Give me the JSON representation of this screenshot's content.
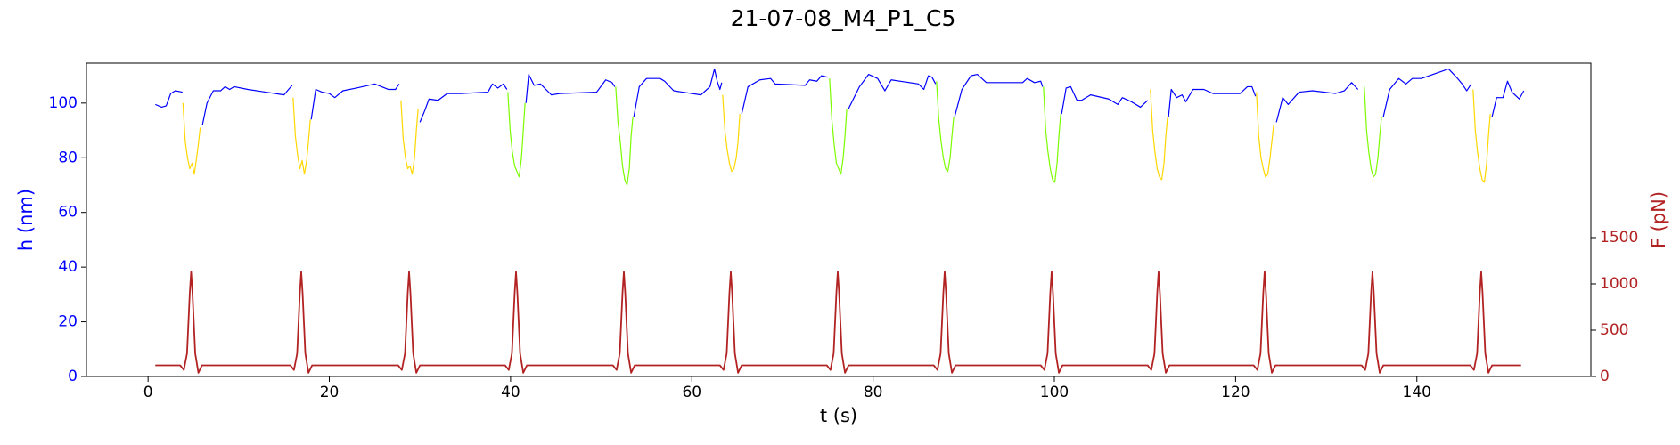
{
  "chart_data": {
    "type": "line",
    "title": "21-07-08_M4_P1_C5",
    "xlabel": "t (s)",
    "ylabel": "h (nm)",
    "y2label": "F (pN)",
    "y_axis_color": "#0000ff",
    "y2_axis_color": "#b22222",
    "xlim": [
      -6.8,
      159.2
    ],
    "ylim": [
      0,
      114.6
    ],
    "y2lim": [
      0,
      3384
    ],
    "xticks": [
      0,
      20,
      40,
      60,
      80,
      100,
      120,
      140
    ],
    "yticks": [
      0,
      20,
      40,
      60,
      80,
      100
    ],
    "y2ticks": [
      0,
      500,
      1000,
      1500
    ],
    "series": [
      {
        "color": "#0000ff",
        "axis": "y",
        "x": [
          0.8,
          1.5,
          2.0,
          2.5,
          3.0,
          3.8,
          4.75,
          6.0,
          6.5,
          7.2,
          8.0,
          8.5,
          9.0,
          9.5,
          11,
          13,
          15,
          15.5,
          15.9,
          16.9,
          18.0,
          18.5,
          19.2,
          20,
          20.6,
          21.5,
          23,
          25,
          26.5,
          27.3,
          27.7,
          28.8,
          30.0,
          30.5,
          31.0,
          32.0,
          33.0,
          34.5,
          37.5,
          38.0,
          38.6,
          39.2,
          39.6,
          40.6,
          41.7,
          42.0,
          42.6,
          43.3,
          44.5,
          45.5,
          49.5,
          50.5,
          51.2,
          51.5,
          52.5,
          53.6,
          54.2,
          55,
          56.5,
          57,
          58,
          61,
          62.0,
          62.5,
          62.8,
          63.1,
          63.3,
          64.3,
          65.5,
          66.2,
          67.5,
          68.7,
          69.2,
          72.5,
          73.0,
          73.8,
          74.3,
          75.0,
          76.1,
          77.3,
          78.5,
          79.5,
          80.5,
          81.3,
          82,
          85,
          85.6,
          86.1,
          86.5,
          86.9,
          87.9,
          89.0,
          89.8,
          90.8,
          91.5,
          92.5,
          96.5,
          97.0,
          97.8,
          98.5,
          98.7,
          99.7,
          100.8,
          101.3,
          101.8,
          102.5,
          103.0,
          104,
          106,
          107,
          107.5,
          108.5,
          109.5,
          110.3,
          111.5,
          112.6,
          112.9,
          113.5,
          114.1,
          114.5,
          115.3,
          116.5,
          117.5,
          120.5,
          121.3,
          121.8,
          122.2,
          123.2,
          124.5,
          125.2,
          125.8,
          127.0,
          128.5,
          131,
          132,
          132.8,
          133.5,
          135.1,
          136.3,
          137.0,
          138.0,
          138.8,
          139.5,
          140.5,
          143.5,
          144.5,
          145.0,
          145.5,
          146.0,
          147.1,
          148.3,
          148.8,
          149.5,
          150.0,
          150.5,
          151.3,
          151.8
        ],
        "values": [
          99.5,
          98.5,
          99,
          103.5,
          104.5,
          104,
          null,
          92,
          100,
          104.5,
          104.5,
          106,
          105,
          106,
          105,
          104,
          103,
          105,
          106.5,
          null,
          94,
          105,
          104,
          103.5,
          102,
          104.5,
          105.5,
          107,
          105,
          105,
          107,
          null,
          93,
          97,
          101.5,
          101,
          103.5,
          103.5,
          104,
          107,
          105.5,
          107,
          105,
          null,
          100,
          110.5,
          106.5,
          107,
          103,
          103.5,
          104,
          108.5,
          107.5,
          106,
          null,
          95,
          106,
          109,
          109,
          108,
          104.5,
          103,
          106,
          112.5,
          108,
          105,
          107.5,
          null,
          96,
          106,
          108.5,
          109,
          107,
          106.5,
          108.5,
          108,
          110,
          109.5,
          null,
          98,
          106,
          110.5,
          109,
          104.5,
          108.5,
          107,
          105,
          110,
          109.5,
          107,
          null,
          95,
          105,
          110,
          110.5,
          107.5,
          107.5,
          109,
          107.5,
          108,
          106,
          null,
          96,
          105.5,
          106,
          101,
          101,
          103,
          101.5,
          99.5,
          102,
          100.5,
          98.5,
          101,
          null,
          95,
          105,
          102,
          103,
          100.5,
          105,
          105,
          103.5,
          103.5,
          106,
          106,
          102.5,
          null,
          93,
          102,
          99.5,
          104,
          104.5,
          103.5,
          104.5,
          107.5,
          105,
          null,
          95,
          105,
          109,
          107,
          109,
          109,
          112.5,
          109,
          107,
          104.5,
          107,
          null,
          95,
          102,
          102,
          108,
          104,
          101.5,
          104.5
        ]
      },
      {
        "color": "#ffd700",
        "axis": "y",
        "x": [
          3.85,
          4.1,
          4.35,
          4.6,
          4.85,
          5.1,
          5.35,
          5.55,
          5.75
        ],
        "values": [
          100,
          86,
          80,
          76,
          78,
          74,
          80,
          85,
          91
        ]
      },
      {
        "color": "#ffd700",
        "axis": "y",
        "x": [
          16.0,
          16.25,
          16.5,
          16.75,
          17.0,
          17.25,
          17.5,
          17.7,
          17.9
        ],
        "values": [
          102,
          88,
          81,
          76,
          79,
          74,
          79,
          86,
          94
        ]
      },
      {
        "color": "#ffd700",
        "axis": "y",
        "x": [
          27.9,
          28.15,
          28.4,
          28.65,
          28.9,
          29.15,
          29.4,
          29.6,
          29.8
        ],
        "values": [
          101,
          87,
          80,
          76,
          77,
          74,
          80,
          90,
          98
        ]
      },
      {
        "color": "#7cfc00",
        "axis": "y",
        "x": [
          39.7,
          39.95,
          40.2,
          40.45,
          40.7,
          40.95,
          41.2,
          41.4,
          41.6
        ],
        "values": [
          104,
          90,
          82,
          77,
          75,
          73,
          80,
          90,
          100
        ]
      },
      {
        "color": "#7cfc00",
        "axis": "y",
        "x": [
          51.6,
          51.85,
          52.1,
          52.35,
          52.6,
          52.85,
          53.1,
          53.3,
          53.5
        ],
        "values": [
          106,
          93,
          86,
          77,
          72,
          70,
          76,
          88,
          95
        ]
      },
      {
        "color": "#ffd700",
        "axis": "y",
        "x": [
          63.4,
          63.65,
          63.9,
          64.15,
          64.4,
          64.65,
          64.9,
          65.1,
          65.3
        ],
        "values": [
          103,
          90,
          83,
          78,
          75,
          76,
          80,
          86,
          96
        ]
      },
      {
        "color": "#7cfc00",
        "axis": "y",
        "x": [
          75.2,
          75.45,
          75.7,
          75.95,
          76.2,
          76.45,
          76.7,
          76.9,
          77.1
        ],
        "values": [
          109,
          94,
          85,
          78,
          76,
          74,
          80,
          88,
          98
        ]
      },
      {
        "color": "#7cfc00",
        "axis": "y",
        "x": [
          87.0,
          87.25,
          87.5,
          87.75,
          88.0,
          88.25,
          88.5,
          88.7,
          88.9
        ],
        "values": [
          108,
          94,
          86,
          80,
          76,
          75,
          80,
          88,
          95
        ]
      },
      {
        "color": "#7cfc00",
        "axis": "y",
        "x": [
          98.8,
          99.05,
          99.3,
          99.55,
          99.8,
          100.05,
          100.3,
          100.5,
          100.7
        ],
        "values": [
          106,
          90,
          82,
          76,
          72,
          71,
          78,
          88,
          96
        ]
      },
      {
        "color": "#ffd700",
        "axis": "y",
        "x": [
          110.6,
          110.85,
          111.1,
          111.35,
          111.6,
          111.85,
          112.1,
          112.3,
          112.5
        ],
        "values": [
          105,
          90,
          82,
          76,
          73,
          72,
          78,
          88,
          95
        ]
      },
      {
        "color": "#ffd700",
        "axis": "y",
        "x": [
          122.3,
          122.55,
          122.8,
          123.05,
          123.3,
          123.55,
          123.8,
          124.0,
          124.2
        ],
        "values": [
          104,
          88,
          80,
          76,
          73,
          74,
          80,
          86,
          92
        ]
      },
      {
        "color": "#7cfc00",
        "axis": "y",
        "x": [
          134.2,
          134.45,
          134.7,
          134.95,
          135.2,
          135.45,
          135.7,
          135.9,
          136.1
        ],
        "values": [
          106,
          90,
          82,
          76,
          73,
          74,
          80,
          88,
          95
        ]
      },
      {
        "color": "#ffd700",
        "axis": "y",
        "x": [
          146.2,
          146.45,
          146.7,
          146.95,
          147.2,
          147.45,
          147.7,
          147.9,
          148.1
        ],
        "values": [
          105,
          90,
          82,
          76,
          72,
          71,
          78,
          88,
          96
        ]
      },
      {
        "color": "#b22222",
        "axis": "y2",
        "x": [
          0.8,
          3.55,
          3.95,
          4.3,
          4.6,
          4.75,
          4.9,
          5.2,
          5.55,
          5.95,
          15.7,
          16.1,
          16.45,
          16.75,
          16.9,
          17.05,
          17.35,
          17.7,
          18.1,
          27.6,
          28.0,
          28.35,
          28.65,
          28.8,
          28.95,
          29.25,
          29.6,
          30.0,
          39.4,
          39.8,
          40.15,
          40.45,
          40.6,
          40.75,
          41.05,
          41.4,
          41.8,
          51.3,
          51.7,
          52.05,
          52.35,
          52.5,
          52.65,
          52.95,
          53.3,
          53.7,
          63.1,
          63.5,
          63.85,
          64.15,
          64.3,
          64.45,
          64.75,
          65.1,
          65.5,
          74.9,
          75.3,
          75.65,
          75.95,
          76.1,
          76.25,
          76.55,
          76.9,
          77.3,
          86.7,
          87.1,
          87.45,
          87.75,
          87.9,
          88.05,
          88.35,
          88.7,
          89.1,
          98.5,
          98.9,
          99.25,
          99.55,
          99.7,
          99.85,
          100.15,
          100.5,
          100.9,
          110.3,
          110.7,
          111.05,
          111.35,
          111.5,
          111.65,
          111.95,
          112.3,
          112.7,
          122.0,
          122.4,
          122.75,
          123.05,
          123.2,
          123.35,
          123.65,
          124.0,
          124.4,
          133.9,
          134.3,
          134.65,
          134.95,
          135.1,
          135.25,
          135.55,
          135.9,
          136.3,
          145.9,
          146.3,
          146.65,
          146.95,
          147.1,
          147.25,
          147.55,
          147.9,
          148.3,
          151.5
        ],
        "values": [
          120,
          120,
          70,
          250,
          900,
          1130,
          900,
          250,
          40,
          120,
          120,
          70,
          250,
          900,
          1130,
          900,
          250,
          40,
          120,
          120,
          70,
          250,
          900,
          1130,
          900,
          250,
          40,
          120,
          120,
          70,
          250,
          900,
          1130,
          900,
          250,
          40,
          120,
          120,
          70,
          250,
          900,
          1130,
          900,
          250,
          40,
          120,
          120,
          70,
          250,
          900,
          1130,
          900,
          250,
          40,
          120,
          120,
          70,
          250,
          900,
          1130,
          900,
          250,
          40,
          120,
          120,
          70,
          250,
          900,
          1130,
          900,
          250,
          40,
          120,
          120,
          70,
          250,
          900,
          1130,
          900,
          250,
          40,
          120,
          120,
          70,
          250,
          900,
          1130,
          900,
          250,
          40,
          120,
          120,
          70,
          250,
          900,
          1130,
          900,
          250,
          40,
          120,
          120,
          70,
          250,
          900,
          1130,
          900,
          250,
          40,
          120,
          120,
          70,
          250,
          900,
          1130,
          900,
          250,
          40,
          120,
          120
        ]
      }
    ]
  }
}
